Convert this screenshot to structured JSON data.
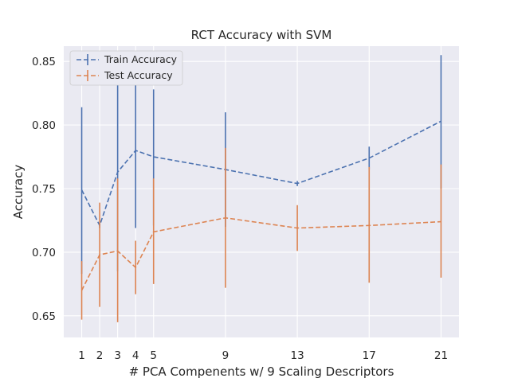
{
  "chart_data": {
    "type": "line",
    "title": "RCT Accuracy with SVM",
    "xlabel": "# PCA Compenents w/ 9 Scaling Descriptors",
    "ylabel": "Accuracy",
    "x": [
      1,
      2,
      3,
      4,
      5,
      9,
      13,
      17,
      21
    ],
    "x_ticks": [
      "1",
      "2",
      "3",
      "4",
      "5",
      "9",
      "13",
      "17",
      "21"
    ],
    "xlim": [
      0,
      22
    ],
    "ylim": [
      0.633,
      0.862
    ],
    "y_ticks": [
      "0.65",
      "0.70",
      "0.75",
      "0.80",
      "0.85"
    ],
    "grid": true,
    "legend_position": "top-left",
    "series": [
      {
        "name": "Train Accuracy",
        "color": "#4c72b0",
        "values": [
          0.749,
          0.721,
          0.763,
          0.78,
          0.775,
          0.765,
          0.754,
          0.774,
          0.803
        ],
        "err_low": [
          0.683,
          0.719,
          0.685,
          0.719,
          0.721,
          0.72,
          0.752,
          0.765,
          0.75
        ],
        "err_high": [
          0.814,
          0.723,
          0.84,
          0.841,
          0.828,
          0.81,
          0.756,
          0.783,
          0.855
        ]
      },
      {
        "name": "Test Accuracy",
        "color": "#dd8452",
        "values": [
          0.67,
          0.698,
          0.701,
          0.688,
          0.716,
          0.727,
          0.719,
          0.721,
          0.724
        ],
        "err_low": [
          0.647,
          0.657,
          0.645,
          0.667,
          0.675,
          0.672,
          0.701,
          0.676,
          0.68
        ],
        "err_high": [
          0.693,
          0.739,
          0.758,
          0.709,
          0.758,
          0.782,
          0.737,
          0.767,
          0.769
        ]
      }
    ]
  }
}
